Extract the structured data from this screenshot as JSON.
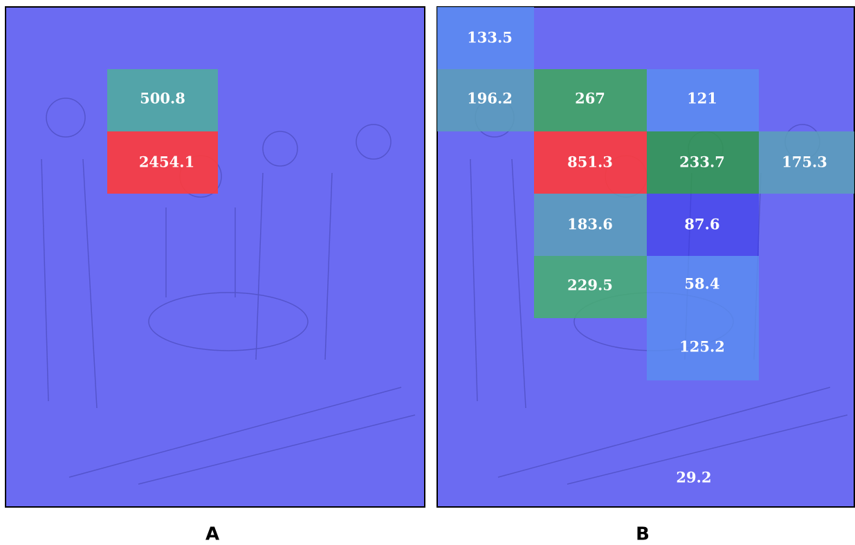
{
  "panels": [
    {
      "label": "A",
      "cells": [
        "500.8",
        "2454.1"
      ]
    },
    {
      "label": "B",
      "cells": [
        "133.5",
        "196.2",
        "267",
        "121",
        "851.3",
        "233.7",
        "175.3",
        "183.6",
        "87.6",
        "229.5",
        "58.4",
        "125.2",
        "29.2"
      ]
    }
  ]
}
